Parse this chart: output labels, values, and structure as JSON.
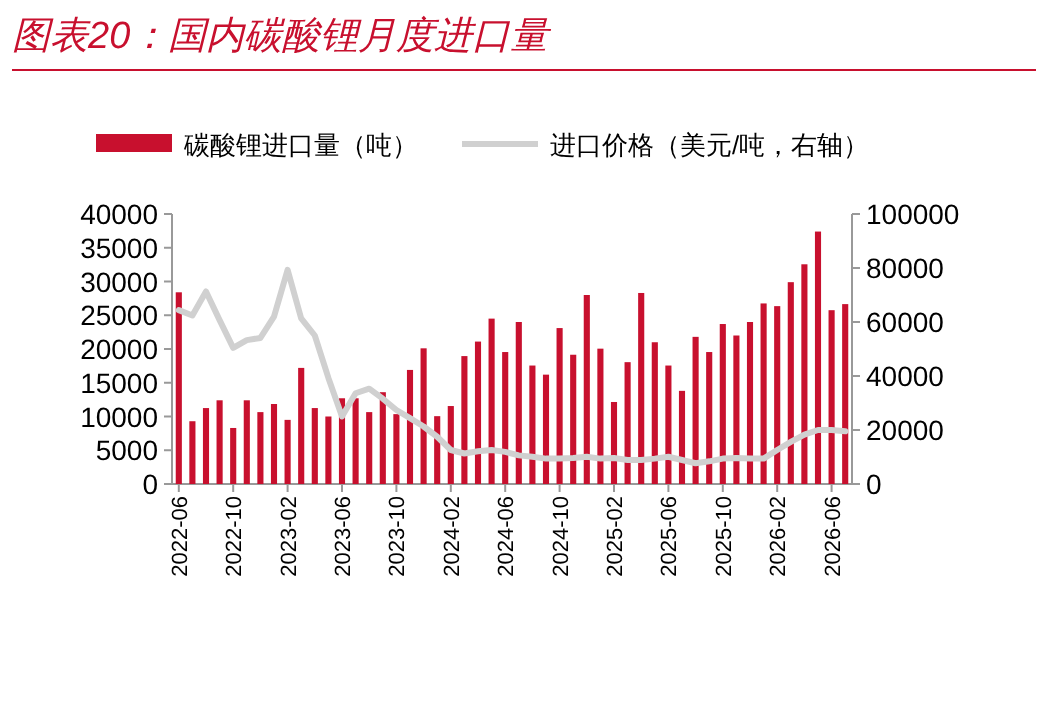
{
  "chart_data": {
    "type": "bar",
    "title": "图表20：国内碳酸锂月度进口量",
    "categories": [
      "2022-06",
      null,
      null,
      null,
      "2022-10",
      null,
      null,
      null,
      "2023-02",
      null,
      null,
      null,
      "2023-06",
      null,
      null,
      null,
      "2023-10",
      null,
      null,
      null,
      "2024-02",
      null,
      null,
      null,
      "2024-06",
      null,
      null,
      null,
      "2024-10",
      null,
      null,
      null,
      "2025-02",
      null,
      null,
      null,
      "2025-06",
      null,
      null,
      null,
      "2025-10",
      null,
      null,
      null,
      "2026-02",
      null,
      null,
      null,
      "2026-06",
      null
    ],
    "series": [
      {
        "name": "碳酸锂进口量（吨）",
        "color": "#c8102e",
        "values": [
          28400,
          9300,
          11250,
          12400,
          8300,
          12400,
          10650,
          11850,
          9500,
          17200,
          11250,
          10000,
          12700,
          12700,
          10650,
          13600,
          10350,
          16900,
          20100,
          10050,
          11550,
          18950,
          21100,
          24500,
          19550,
          24000,
          17550,
          16200,
          23100,
          19150,
          28000,
          20050,
          12150,
          18050,
          28300,
          21000,
          17550,
          13800,
          21800,
          19550,
          23700,
          22000,
          24000,
          26750,
          26350,
          29900,
          32550,
          37400,
          25750,
          26650
        ]
      },
      {
        "name": "进口价格（美元/吨，右轴）",
        "type": "line",
        "axis": "y2",
        "color": "#d0d0d0",
        "values": [
          64400,
          62400,
          71300,
          60700,
          50400,
          53300,
          54100,
          62000,
          79300,
          61300,
          55000,
          39300,
          25000,
          33600,
          35300,
          31600,
          27400,
          24400,
          21300,
          17500,
          12600,
          11300,
          12100,
          12600,
          11900,
          10600,
          10100,
          9400,
          9400,
          9600,
          10100,
          9400,
          9600,
          8900,
          8900,
          9400,
          10100,
          8900,
          7700,
          8400,
          9400,
          9600,
          9400,
          9400,
          12600,
          15600,
          18300,
          20000,
          20000,
          19500
        ]
      }
    ],
    "ylim": [
      0,
      40000
    ],
    "yticks": [
      0,
      5000,
      10000,
      15000,
      20000,
      25000,
      30000,
      35000,
      40000
    ],
    "y2lim": [
      0,
      100000
    ],
    "y2ticks": [
      0,
      20000,
      40000,
      60000,
      80000,
      100000
    ],
    "legend": "top"
  }
}
